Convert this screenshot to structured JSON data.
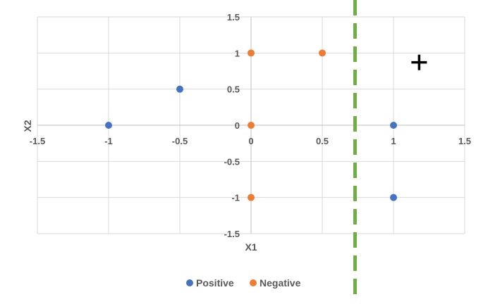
{
  "chart_data": {
    "type": "scatter",
    "xlabel": "X1",
    "ylabel": "X2",
    "xlim": [
      -1.5,
      1.5
    ],
    "ylim": [
      -1.5,
      1.5
    ],
    "xticks": [
      "-1.5",
      "-1",
      "-0.5",
      "0",
      "0.5",
      "1",
      "1.5"
    ],
    "yticks": [
      "1.5",
      "1",
      "0.5",
      "0",
      "-0.5",
      "-1",
      "-1.5"
    ],
    "grid": true,
    "legend_position": "bottom",
    "series": [
      {
        "name": "Positive",
        "color": "#4472C4",
        "points": [
          {
            "x": -1,
            "y": 0
          },
          {
            "x": -0.5,
            "y": 0.5
          },
          {
            "x": 1,
            "y": 0
          },
          {
            "x": 1,
            "y": -1
          }
        ]
      },
      {
        "name": "Negative",
        "color": "#ED7D31",
        "points": [
          {
            "x": 0,
            "y": 1
          },
          {
            "x": 0.5,
            "y": 1
          },
          {
            "x": 0,
            "y": 0
          },
          {
            "x": 0,
            "y": -1
          }
        ]
      }
    ],
    "decision_boundary": {
      "orientation": "vertical",
      "x": 0.73,
      "color": "#70AD47",
      "style": "dashed"
    },
    "marker_annotation": {
      "symbol": "+",
      "x": 1.18,
      "y": 0.87,
      "color": "#000000"
    }
  }
}
